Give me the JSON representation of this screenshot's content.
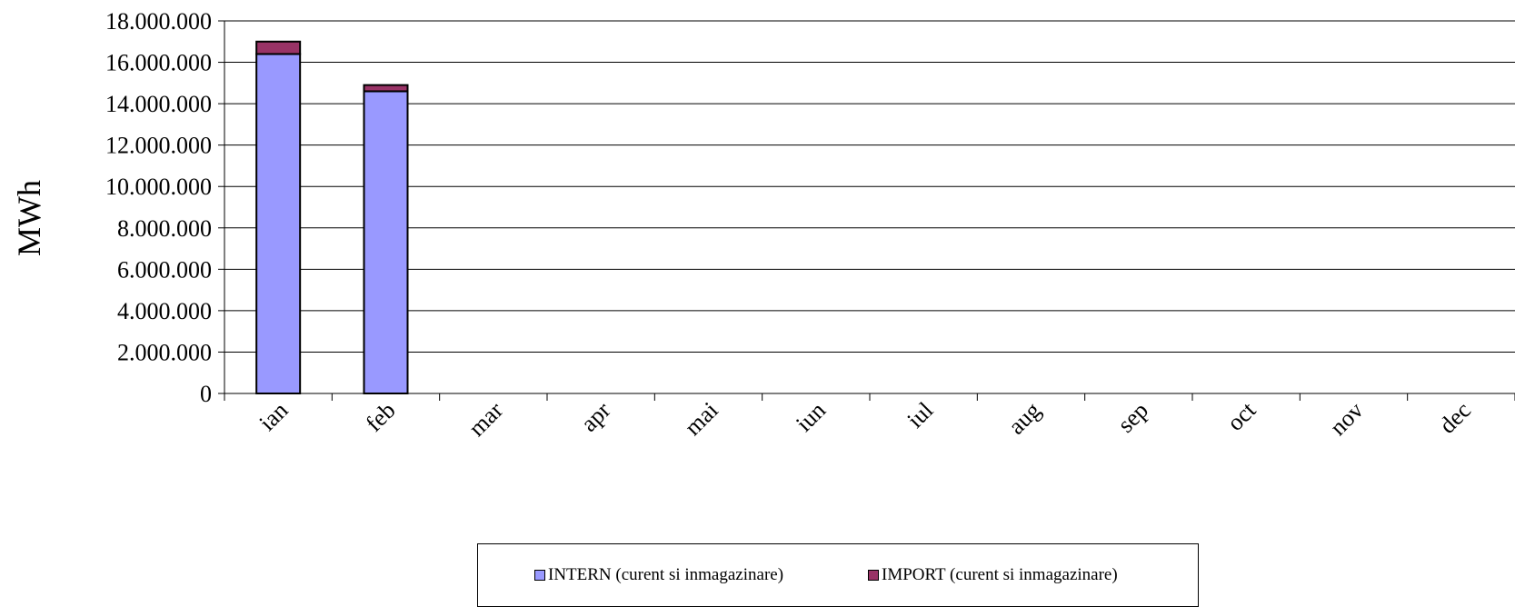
{
  "chart_data": {
    "type": "bar",
    "stacked": true,
    "categories": [
      "ian",
      "feb",
      "mar",
      "apr",
      "mai",
      "iun",
      "iul",
      "aug",
      "sep",
      "oct",
      "nov",
      "dec"
    ],
    "series": [
      {
        "name": "INTERN (curent si inmagazinare)",
        "color": "#9999FF",
        "values": [
          16400000,
          14600000,
          null,
          null,
          null,
          null,
          null,
          null,
          null,
          null,
          null,
          null
        ]
      },
      {
        "name": "IMPORT (curent si inmagazinare)",
        "color": "#993366",
        "values": [
          600000,
          300000,
          null,
          null,
          null,
          null,
          null,
          null,
          null,
          null,
          null,
          null
        ]
      }
    ],
    "ylabel": "MWh",
    "ylim": [
      0,
      18000000
    ],
    "yticks": [
      0,
      2000000,
      4000000,
      6000000,
      8000000,
      10000000,
      12000000,
      14000000,
      16000000,
      18000000
    ],
    "ytick_labels": [
      "0",
      "2.000.000",
      "4.000.000",
      "6.000.000",
      "8.000.000",
      "10.000.000",
      "12.000.000",
      "14.000.000",
      "16.000.000",
      "18.000.000"
    ],
    "grid": true,
    "legend_position": "bottom"
  }
}
